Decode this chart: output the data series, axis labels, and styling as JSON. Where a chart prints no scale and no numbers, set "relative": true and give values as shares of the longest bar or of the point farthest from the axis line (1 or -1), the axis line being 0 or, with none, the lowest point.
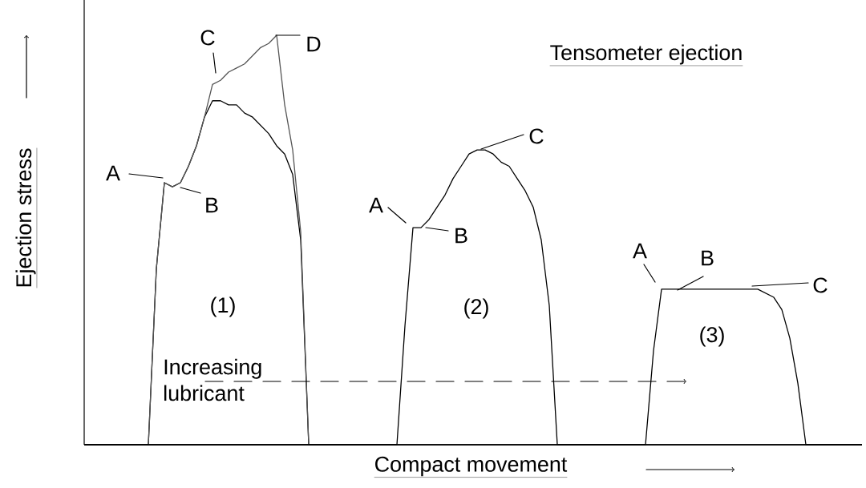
{
  "chart_data": {
    "type": "line",
    "title": "Tensometer ejection",
    "xlabel": "Compact movement",
    "ylabel": "Ejection stress",
    "relative": true,
    "annotations": [
      "A",
      "B",
      "C",
      "D",
      "(1)",
      "A",
      "B",
      "C",
      "(2)",
      "A",
      "B",
      "C",
      "(3)",
      "Increasing lubricant"
    ],
    "categories": [
      null,
      null,
      null,
      null,
      null,
      null,
      null,
      null,
      null,
      null,
      null,
      null,
      null,
      null,
      null,
      null,
      null,
      null,
      null,
      null,
      null,
      null,
      null,
      null,
      null,
      null,
      null,
      null,
      null,
      null,
      null,
      null,
      null,
      null,
      null,
      null,
      null,
      null,
      null,
      null,
      null,
      null,
      null,
      null,
      null,
      null,
      null,
      null,
      null,
      null,
      null,
      null,
      null,
      null,
      null,
      null,
      null,
      null,
      null,
      null,
      null,
      null,
      null,
      null,
      null,
      null,
      null,
      null,
      null,
      null,
      null,
      null,
      null,
      null,
      null,
      null,
      null,
      null,
      null,
      null,
      null,
      null,
      null,
      null,
      null,
      null,
      null,
      null,
      null,
      null,
      null,
      null,
      null,
      null,
      null,
      null,
      null,
      null
    ],
    "series": [
      {
        "color": "#000000",
        "values": [
          0,
          0,
          0,
          0,
          0,
          0,
          0,
          0,
          0,
          0.43,
          0.64,
          0.63,
          0.64,
          0.68,
          0.73,
          0.8,
          0.84,
          0.84,
          0.83,
          0.83,
          0.81,
          0.8,
          0.78,
          0.76,
          0.73,
          0.71,
          0.66,
          0.5,
          0,
          0,
          0,
          0,
          0,
          0,
          0,
          0,
          0,
          0,
          0,
          0,
          0,
          0,
          0,
          0,
          0,
          0,
          0,
          0,
          0,
          0,
          0,
          0,
          0,
          0,
          0,
          0,
          0,
          0,
          0,
          0,
          0,
          0,
          0,
          0,
          0,
          0,
          0,
          0,
          0,
          0,
          0,
          0,
          0,
          0,
          0,
          0,
          0,
          0,
          0,
          0,
          0,
          0,
          0,
          0,
          0,
          0,
          0,
          0,
          0,
          0,
          0,
          0,
          0,
          0,
          0,
          0,
          0,
          0
        ]
      },
      {
        "color": "#555555",
        "values": [
          0,
          0,
          0,
          0,
          0,
          0,
          0,
          0,
          0,
          0.43,
          0.64,
          0.63,
          0.64,
          0.68,
          0.73,
          0.8,
          0.88,
          0.89,
          0.91,
          0.92,
          0.93,
          0.95,
          0.97,
          0.98,
          1,
          0.83,
          0.72,
          0.52,
          0,
          0,
          0,
          0,
          0,
          0,
          0,
          0,
          0,
          0,
          0,
          0,
          0,
          0,
          0,
          0,
          0,
          0,
          0,
          0,
          0,
          0,
          0,
          0,
          0,
          0,
          0,
          0,
          0,
          0,
          0,
          0,
          0,
          0,
          0,
          0,
          0,
          0,
          0,
          0,
          0,
          0,
          0,
          0,
          0,
          0,
          0,
          0,
          0,
          0,
          0,
          0,
          0,
          0,
          0,
          0,
          0,
          0,
          0,
          0,
          0,
          0,
          0,
          0,
          0,
          0,
          0,
          0,
          0,
          0
        ]
      },
      {
        "color": "#000000",
        "values": [
          0,
          0,
          0,
          0,
          0,
          0,
          0,
          0,
          0,
          0,
          0,
          0,
          0,
          0,
          0,
          0,
          0,
          0,
          0,
          0,
          0,
          0,
          0,
          0,
          0,
          0,
          0,
          0,
          0,
          0,
          0,
          0,
          0,
          0,
          0,
          0,
          0,
          0,
          0,
          0,
          0.29,
          0.53,
          0.53,
          0.55,
          0.58,
          0.61,
          0.65,
          0.68,
          0.71,
          0.72,
          0.72,
          0.71,
          0.69,
          0.68,
          0.65,
          0.62,
          0.58,
          0.5,
          0.34,
          0,
          0,
          0,
          0,
          0,
          0,
          0,
          0,
          0,
          0,
          0,
          0,
          0,
          0,
          0,
          0,
          0,
          0,
          0,
          0,
          0,
          0,
          0,
          0,
          0,
          0,
          0,
          0,
          0,
          0,
          0,
          0,
          0,
          0,
          0,
          0,
          0,
          0,
          0
        ]
      },
      {
        "color": "#000000",
        "values": [
          0,
          0,
          0,
          0,
          0,
          0,
          0,
          0,
          0,
          0,
          0,
          0,
          0,
          0,
          0,
          0,
          0,
          0,
          0,
          0,
          0,
          0,
          0,
          0,
          0,
          0,
          0,
          0,
          0,
          0,
          0,
          0,
          0,
          0,
          0,
          0,
          0,
          0,
          0,
          0,
          0,
          0,
          0,
          0,
          0,
          0,
          0,
          0,
          0,
          0,
          0,
          0,
          0,
          0,
          0,
          0,
          0,
          0,
          0,
          0,
          0,
          0,
          0,
          0,
          0,
          0,
          0,
          0,
          0,
          0,
          0,
          0.23,
          0.38,
          0.38,
          0.38,
          0.38,
          0.38,
          0.38,
          0.38,
          0.38,
          0.38,
          0.38,
          0.38,
          0.38,
          0.38,
          0.37,
          0.36,
          0.33,
          0.26,
          0.15,
          0,
          0,
          0,
          0,
          0,
          0,
          0,
          0
        ]
      }
    ]
  }
}
